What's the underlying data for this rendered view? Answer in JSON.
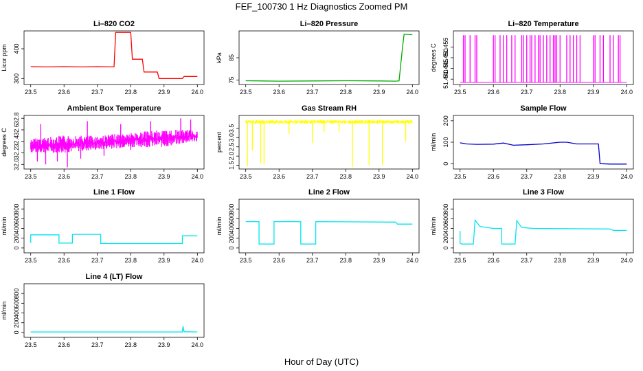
{
  "figure": {
    "title": "FEF_100730  1 Hz Diagnostics Zoomed PM",
    "xlabel": "Hour of Day (UTC)"
  },
  "chart_data": [
    {
      "type": "line",
      "title": "Li–820 CO2",
      "xlabel": "",
      "ylabel": "Licor ppm",
      "color": "#ff0000",
      "xlim": [
        23.48,
        24.02
      ],
      "ylim": [
        280,
        460
      ],
      "xticks": [
        "23.5",
        "23.6",
        "23.7",
        "23.8",
        "23.9",
        "24.0"
      ],
      "yticks": [
        "300",
        "400"
      ],
      "series": [
        {
          "x": [
            23.5,
            23.55,
            23.6,
            23.65,
            23.7,
            23.75,
            23.755,
            23.8,
            23.805,
            23.835,
            23.84,
            23.88,
            23.885,
            23.955,
            23.96,
            24.0
          ],
          "y": [
            340,
            339,
            340,
            339,
            340,
            339,
            455,
            455,
            365,
            365,
            322,
            322,
            300,
            300,
            307,
            307
          ]
        }
      ]
    },
    {
      "type": "line",
      "title": "Li–820 Pressure",
      "xlabel": "",
      "ylabel": "kPa",
      "color": "#00aa00",
      "xlim": [
        23.48,
        24.02
      ],
      "ylim": [
        73,
        97
      ],
      "xticks": [
        "23.5",
        "23.6",
        "23.7",
        "23.8",
        "23.9",
        "24.0"
      ],
      "yticks": [
        "75",
        "85"
      ],
      "series": [
        {
          "x": [
            23.5,
            23.6,
            23.7,
            23.8,
            23.9,
            23.95,
            23.96,
            23.97,
            23.975,
            24.0
          ],
          "y": [
            74.7,
            74.5,
            74.6,
            74.7,
            74.6,
            74.5,
            74.6,
            89,
            95.5,
            95.3
          ]
        }
      ]
    },
    {
      "type": "line",
      "title": "Li–820 Temperature",
      "xlabel": "",
      "ylabel": "degrees C",
      "color": "#ff00ff",
      "xlim": [
        23.48,
        24.02
      ],
      "ylim": [
        51.4375,
        51.4625
      ],
      "xticks": [
        "23.5",
        "23.6",
        "23.7",
        "23.8",
        "23.9",
        "24.0"
      ],
      "yticks": [
        "51.440",
        "51.445",
        "51.450",
        "51.455"
      ],
      "baseline": 51.4385,
      "spike_top": 51.4605,
      "spikes": [
        23.51,
        23.515,
        23.53,
        23.545,
        23.55,
        23.6,
        23.605,
        23.62,
        23.63,
        23.64,
        23.655,
        23.665,
        23.685,
        23.69,
        23.7,
        23.71,
        23.715,
        23.725,
        23.735,
        23.74,
        23.75,
        23.76,
        23.77,
        23.78,
        23.785,
        23.79,
        23.8,
        23.82,
        23.83,
        23.84,
        23.85,
        23.86,
        23.9,
        23.905,
        23.92,
        23.93,
        23.95,
        23.96,
        23.975,
        23.98
      ]
    },
    {
      "type": "line",
      "title": "Ambient Box Temperature",
      "xlabel": "",
      "ylabel": "degrees C",
      "color": "#ff00ff",
      "xlim": [
        23.48,
        24.02
      ],
      "ylim": [
        31.92,
        32.85
      ],
      "xticks": [
        "23.5",
        "23.6",
        "23.7",
        "23.8",
        "23.9",
        "24.0"
      ],
      "yticks": [
        "32.0",
        "32.2",
        "32.4",
        "32.6",
        "32.8"
      ],
      "band": {
        "x": [
          23.5,
          23.6,
          23.7,
          23.8,
          23.9,
          24.0
        ],
        "low": [
          32.2,
          32.2,
          32.25,
          32.3,
          32.3,
          32.4
        ],
        "high": [
          32.45,
          32.5,
          32.5,
          32.55,
          32.6,
          32.6
        ]
      },
      "dips": [
        [
          23.52,
          32.05
        ],
        [
          23.545,
          32.0
        ],
        [
          23.58,
          32.05
        ],
        [
          23.61,
          31.95
        ],
        [
          23.65,
          32.1
        ],
        [
          23.72,
          32.15
        ],
        [
          23.8,
          32.25
        ],
        [
          23.85,
          32.3
        ]
      ],
      "peaks": [
        [
          23.53,
          32.7
        ],
        [
          23.67,
          32.75
        ],
        [
          23.77,
          32.7
        ],
        [
          23.86,
          32.75
        ],
        [
          23.95,
          32.8
        ],
        [
          23.98,
          32.78
        ]
      ]
    },
    {
      "type": "line",
      "title": "Gas Stream RH",
      "xlabel": "",
      "ylabel": "percent",
      "color": "#ffff00",
      "xlim": [
        23.48,
        24.02
      ],
      "ylim": [
        1.3,
        4.2
      ],
      "xticks": [
        "23.5",
        "23.6",
        "23.7",
        "23.8",
        "23.9",
        "24.0"
      ],
      "yticks": [
        "1.5",
        "2.0",
        "2.5",
        "3.0",
        "3.5"
      ],
      "band": {
        "low": 3.75,
        "high": 3.95
      },
      "dips": [
        [
          23.505,
          1.45
        ],
        [
          23.52,
          2.3
        ],
        [
          23.545,
          1.6
        ],
        [
          23.555,
          1.55
        ],
        [
          23.63,
          3.2
        ],
        [
          23.7,
          2.7
        ],
        [
          23.735,
          3.3
        ],
        [
          23.78,
          3.3
        ],
        [
          23.82,
          1.4
        ],
        [
          23.87,
          1.5
        ],
        [
          23.91,
          1.5
        ],
        [
          23.98,
          2.8
        ]
      ]
    },
    {
      "type": "line",
      "title": "Sample Flow",
      "xlabel": "",
      "ylabel": "ml/min",
      "color": "#0000cc",
      "xlim": [
        23.48,
        24.02
      ],
      "ylim": [
        -25,
        225
      ],
      "xticks": [
        "23.5",
        "23.6",
        "23.7",
        "23.8",
        "23.9",
        "24.0"
      ],
      "yticks": [
        "0",
        "100",
        "200"
      ],
      "series": [
        {
          "x": [
            23.5,
            23.52,
            23.55,
            23.6,
            23.63,
            23.66,
            23.7,
            23.75,
            23.8,
            23.82,
            23.85,
            23.9,
            23.915,
            23.92,
            23.95,
            24.0
          ],
          "y": [
            97,
            92,
            90,
            91,
            96,
            86,
            88,
            92,
            100,
            100,
            92,
            92,
            92,
            0,
            -2,
            -2
          ]
        }
      ]
    },
    {
      "type": "line",
      "title": "Line 1 Flow",
      "xlabel": "",
      "ylabel": "ml/min",
      "color": "#00e5ee",
      "xlim": [
        23.48,
        24.02
      ],
      "ylim": [
        -100,
        1000
      ],
      "xticks": [
        "23.5",
        "23.6",
        "23.7",
        "23.8",
        "23.9",
        "24.0"
      ],
      "yticks": [
        "0",
        "200",
        "400",
        "600",
        "800"
      ],
      "series": [
        {
          "x": [
            23.5,
            23.5,
            23.585,
            23.585,
            23.625,
            23.625,
            23.71,
            23.71,
            23.955,
            23.955,
            24.0
          ],
          "y": [
            100,
            270,
            270,
            100,
            100,
            280,
            280,
            90,
            90,
            250,
            250
          ]
        }
      ]
    },
    {
      "type": "line",
      "title": "Line 2 Flow",
      "xlabel": "",
      "ylabel": "ml/min",
      "color": "#00e5ee",
      "xlim": [
        23.48,
        24.02
      ],
      "ylim": [
        -100,
        1000
      ],
      "xticks": [
        "23.5",
        "23.6",
        "23.7",
        "23.8",
        "23.9",
        "24.0"
      ],
      "yticks": [
        "0",
        "200",
        "400",
        "600",
        "800"
      ],
      "series": [
        {
          "x": [
            23.5,
            23.54,
            23.54,
            23.585,
            23.585,
            23.665,
            23.665,
            23.71,
            23.71,
            23.95,
            23.955,
            24.0
          ],
          "y": [
            540,
            540,
            80,
            80,
            540,
            540,
            80,
            80,
            540,
            530,
            490,
            490
          ]
        }
      ]
    },
    {
      "type": "line",
      "title": "Line 3 Flow",
      "xlabel": "",
      "ylabel": "ml/min",
      "color": "#00e5ee",
      "xlim": [
        23.48,
        24.02
      ],
      "ylim": [
        -100,
        1000
      ],
      "xticks": [
        "23.5",
        "23.6",
        "23.7",
        "23.8",
        "23.9",
        "24.0"
      ],
      "yticks": [
        "0",
        "200",
        "400",
        "600",
        "800"
      ],
      "series": [
        {
          "x": [
            23.5,
            23.5,
            23.505,
            23.54,
            23.545,
            23.56,
            23.6,
            23.625,
            23.625,
            23.665,
            23.67,
            23.685,
            23.72,
            23.95,
            23.96,
            24.0
          ],
          "y": [
            350,
            100,
            80,
            80,
            570,
            440,
            400,
            400,
            80,
            80,
            560,
            420,
            400,
            390,
            360,
            360
          ]
        }
      ]
    },
    {
      "type": "line",
      "title": "Line 4 (LT) Flow",
      "xlabel": "",
      "ylabel": "ml/min",
      "color": "#00e5ee",
      "xlim": [
        23.48,
        24.02
      ],
      "ylim": [
        -100,
        1000
      ],
      "xticks": [
        "23.5",
        "23.6",
        "23.7",
        "23.8",
        "23.9",
        "24.0"
      ],
      "yticks": [
        "0",
        "200",
        "400",
        "600",
        "800"
      ],
      "series": [
        {
          "x": [
            23.5,
            23.6,
            23.7,
            23.8,
            23.9,
            23.955,
            23.957,
            23.96,
            24.0
          ],
          "y": [
            10,
            10,
            10,
            10,
            10,
            10,
            130,
            15,
            10
          ]
        }
      ]
    }
  ]
}
